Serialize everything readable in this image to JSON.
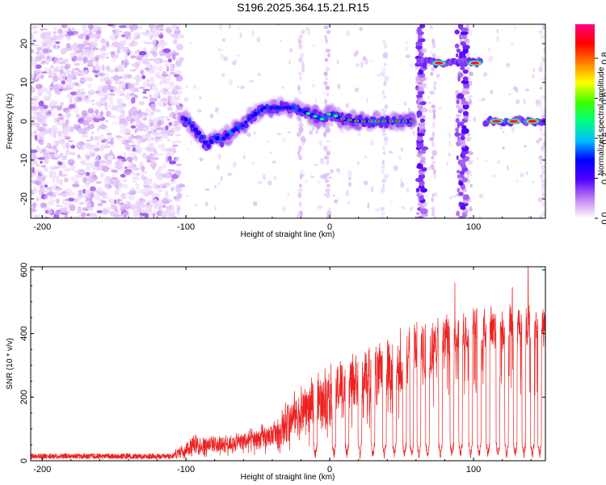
{
  "title": "S196.2025.364.15.21.R15",
  "chart_data": [
    {
      "type": "heatmap",
      "title": "S196.2025.364.15.21.R15",
      "xlabel": "Height of straight line (km)",
      "ylabel": "Frequency (Hz)",
      "xlim": [
        -208,
        150
      ],
      "ylim": [
        -25,
        25
      ],
      "xticks": [
        -200,
        -100,
        0,
        100
      ],
      "yticks": [
        -20,
        -10,
        0,
        10,
        20
      ],
      "colorbar": {
        "label": "Normalized spectral amplitude",
        "range": [
          0.0,
          0.97
        ],
        "ticks": [
          "0.0",
          "0.2",
          "0.4",
          "0.6",
          "0.8"
        ],
        "tick_values": [
          0.0,
          0.2,
          0.4,
          0.6,
          0.8
        ],
        "colors": [
          "#ffffff",
          "#c080f0",
          "#5000ff",
          "#0000ff",
          "#00c0ff",
          "#00ff80",
          "#40ff00",
          "#ffff00",
          "#ff8000",
          "#ff0000",
          "#ff0080"
        ]
      },
      "ridge": [
        {
          "x": -100,
          "f": 0.5
        },
        {
          "x": -95,
          "f": -1.5
        },
        {
          "x": -90,
          "f": -3.5
        },
        {
          "x": -85,
          "f": -6.5
        },
        {
          "x": -80,
          "f": -4
        },
        {
          "x": -75,
          "f": -5
        },
        {
          "x": -70,
          "f": -3
        },
        {
          "x": -60,
          "f": -1
        },
        {
          "x": -55,
          "f": 1
        },
        {
          "x": -45,
          "f": 3.5
        },
        {
          "x": -35,
          "f": 3.5
        },
        {
          "x": -25,
          "f": 3.5
        },
        {
          "x": -15,
          "f": 2
        },
        {
          "x": -5,
          "f": 0.5
        },
        {
          "x": 0,
          "f": 2
        },
        {
          "x": 10,
          "f": 0.5
        },
        {
          "x": 20,
          "f": 0
        },
        {
          "x": 30,
          "f": 0
        },
        {
          "x": 40,
          "f": 0
        },
        {
          "x": 50,
          "f": 0
        },
        {
          "x": 58,
          "f": 0
        }
      ],
      "strong_peaks": [
        {
          "x": 76,
          "f": 15,
          "amp": 0.95
        },
        {
          "x": 101,
          "f": 15,
          "amp": 0.95
        },
        {
          "x": 116,
          "f": 0,
          "amp": 0.95
        },
        {
          "x": 128,
          "f": 0,
          "amp": 0.95
        },
        {
          "x": 141,
          "f": 0,
          "amp": 0.9
        }
      ]
    },
    {
      "type": "line",
      "xlabel": "Height of straight line (km)",
      "ylabel": "SNR (10 * v/v)",
      "xlim": [
        -208,
        150
      ],
      "ylim": [
        0,
        610
      ],
      "xticks": [
        -200,
        -100,
        0,
        100
      ],
      "yticks": [
        0,
        200,
        400,
        600
      ],
      "color": "#ee2222",
      "envelope": [
        {
          "x": -208,
          "lo": 0,
          "hi": 25
        },
        {
          "x": -110,
          "lo": 0,
          "hi": 25
        },
        {
          "x": -95,
          "lo": 15,
          "hi": 90
        },
        {
          "x": -70,
          "lo": 20,
          "hi": 90
        },
        {
          "x": -40,
          "lo": 30,
          "hi": 130
        },
        {
          "x": -20,
          "lo": 60,
          "hi": 260
        },
        {
          "x": 0,
          "lo": 100,
          "hi": 330
        },
        {
          "x": 20,
          "lo": 140,
          "hi": 380
        },
        {
          "x": 40,
          "lo": 170,
          "hi": 430
        },
        {
          "x": 60,
          "lo": 220,
          "hi": 470
        },
        {
          "x": 80,
          "lo": 280,
          "hi": 480
        },
        {
          "x": 100,
          "lo": 320,
          "hi": 510
        },
        {
          "x": 120,
          "lo": 330,
          "hi": 520
        },
        {
          "x": 150,
          "lo": 340,
          "hi": 500
        }
      ],
      "dropouts": [
        -10,
        3,
        12,
        21,
        30,
        38,
        45,
        52,
        57,
        62,
        68,
        77,
        85,
        91,
        98,
        104,
        110,
        117,
        123,
        129,
        135,
        141,
        146
      ],
      "spikes": [
        {
          "x": 87,
          "y": 560
        },
        {
          "x": 138,
          "y": 608
        },
        {
          "x": 127,
          "y": 545
        }
      ]
    }
  ]
}
